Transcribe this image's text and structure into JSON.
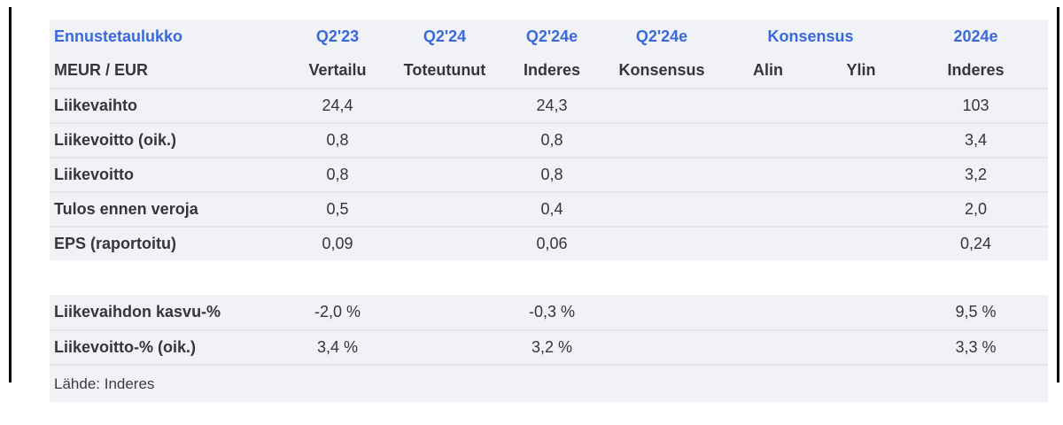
{
  "colors": {
    "header_blue": "#3a69de",
    "row_band": "#f1f2f6",
    "separator": "#e4e6eb",
    "text_dark": "#34363b"
  },
  "chart_data": {
    "type": "table",
    "title": "Ennustetaulukko",
    "unit_label": "MEUR / EUR",
    "header_row1": [
      "Ennustetaulukko",
      "Q2'23",
      "Q2'24",
      "Q2'24e",
      "Q2'24e",
      "Konsensus",
      "2024e"
    ],
    "header_row2": [
      "MEUR / EUR",
      "Vertailu",
      "Toteutunut",
      "Inderes",
      "Konsensus",
      "Alin",
      "Ylin",
      "Inderes"
    ],
    "rows": [
      {
        "label": "Liikevaihto",
        "values": [
          "24,4",
          "",
          "24,3",
          "",
          "",
          "",
          "103"
        ]
      },
      {
        "label": "Liikevoitto (oik.)",
        "values": [
          "0,8",
          "",
          "0,8",
          "",
          "",
          "",
          "3,4"
        ]
      },
      {
        "label": "Liikevoitto",
        "values": [
          "0,8",
          "",
          "0,8",
          "",
          "",
          "",
          "3,2"
        ]
      },
      {
        "label": "Tulos ennen veroja",
        "values": [
          "0,5",
          "",
          "0,4",
          "",
          "",
          "",
          "2,0"
        ]
      },
      {
        "label": "EPS (raportoitu)",
        "values": [
          "0,09",
          "",
          "0,06",
          "",
          "",
          "",
          "0,24"
        ]
      },
      {
        "label": "Liikevaihdon kasvu-%",
        "values": [
          "-2,0 %",
          "",
          "-0,3 %",
          "",
          "",
          "",
          "9,5 %"
        ]
      },
      {
        "label": "Liikevoitto-% (oik.)",
        "values": [
          "3,4 %",
          "",
          "3,2 %",
          "",
          "",
          "",
          "3,3 %"
        ]
      }
    ],
    "source": "Lähde: Inderes",
    "legend_position": "none",
    "grid": "row-separators"
  }
}
